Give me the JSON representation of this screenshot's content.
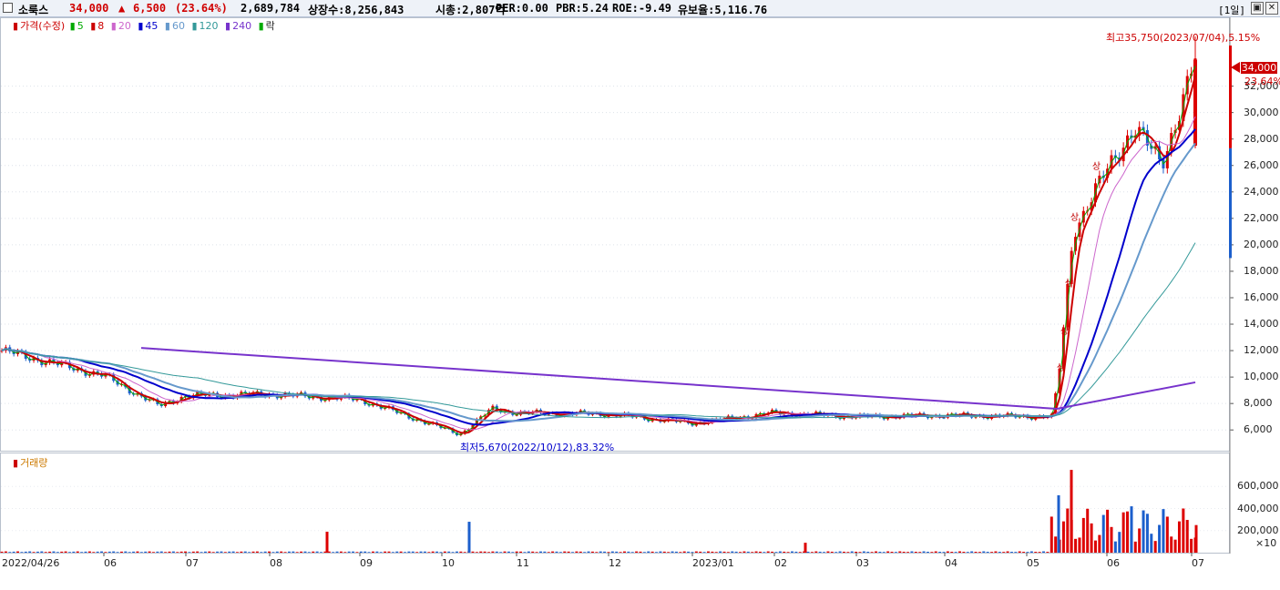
{
  "header": {
    "name": "소룩스",
    "price": "34,000",
    "change_arrow": "▲",
    "change": "6,500",
    "change_pct": "(23.64%)",
    "volume": "2,689,784",
    "listed": "상장수:8,256,843",
    "mcap": "시총:2,807억",
    "per": "PER:0.00",
    "pbr": "PBR:5.24",
    "roe": "ROE:-9.49",
    "retention": "유보율:5,116.76",
    "period": "[1일]",
    "restore_icon": "restore-icon",
    "close_icon": "close-icon"
  },
  "legend": {
    "price_label": "가격(수정)",
    "ma": [
      {
        "label": "5",
        "color": "#00aa00"
      },
      {
        "label": "8",
        "color": "#cc0000"
      },
      {
        "label": "20",
        "color": "#cc66cc"
      },
      {
        "label": "45",
        "color": "#0000cc"
      },
      {
        "label": "60",
        "color": "#6699cc"
      },
      {
        "label": "120",
        "color": "#339999"
      },
      {
        "label": "240",
        "color": "#7733cc"
      }
    ],
    "rak": "락"
  },
  "volume_legend": "거래량",
  "annotations": {
    "high": "최고35,750(2023/07/04),5.15%",
    "low": "최저5,670(2022/10/12),83.32%",
    "sang": "상"
  },
  "price_tag": {
    "value": "34,000",
    "pct": "23.64%"
  },
  "chart_data": {
    "type": "candlestick",
    "price_axis": {
      "ticks": [
        "32,000",
        "30,000",
        "28,000",
        "26,000",
        "24,000",
        "22,000",
        "20,000",
        "18,000",
        "16,000",
        "14,000",
        "12,000",
        "10,000",
        "8,000",
        "6,000"
      ],
      "ylim": [
        4500,
        37000
      ]
    },
    "volume_axis": {
      "ticks": [
        "600,000",
        "400,000",
        "200,000"
      ],
      "unit": "×10",
      "ylim": [
        0,
        800000
      ]
    },
    "x_labels": [
      "2022/04/26",
      "06",
      "07",
      "08",
      "09",
      "10",
      "11",
      "12",
      "2023/01",
      "02",
      "03",
      "04",
      "05",
      "06",
      "07"
    ],
    "key_points": [
      {
        "date": "2022/04/26",
        "close": 12000
      },
      {
        "date": "2022/06",
        "close": 10100
      },
      {
        "date": "2022/06 end",
        "close": 7800
      },
      {
        "date": "2022/07",
        "close": 8600
      },
      {
        "date": "2022/08",
        "close": 8700
      },
      {
        "date": "2022/09",
        "close": 8300
      },
      {
        "date": "2022/10/12",
        "close": 5670
      },
      {
        "date": "2022/10",
        "close": 7600
      },
      {
        "date": "2022/11",
        "close": 7300
      },
      {
        "date": "2022/12",
        "close": 7200
      },
      {
        "date": "2023/01",
        "close": 6500
      },
      {
        "date": "2023/02",
        "close": 7300
      },
      {
        "date": "2023/03",
        "close": 7000
      },
      {
        "date": "2023/04",
        "close": 7100
      },
      {
        "date": "2023/05",
        "close": 7000
      },
      {
        "date": "2023/05 mid",
        "close": 10000
      },
      {
        "date": "2023/05 late",
        "close": 21000
      },
      {
        "date": "2023/06",
        "close": 25000
      },
      {
        "date": "2023/06 mid",
        "close": 29000
      },
      {
        "date": "2023/06 late",
        "close": 26000
      },
      {
        "date": "2023/07/04",
        "close": 34000
      }
    ],
    "volume_spikes": [
      {
        "date": "2022/08",
        "value": 190000
      },
      {
        "date": "2022/10",
        "value": 280000
      },
      {
        "date": "2023/02",
        "value": 90000
      },
      {
        "date": "2023/05",
        "value": 520000
      },
      {
        "date": "2023/05 mid",
        "value": 750000
      },
      {
        "date": "2023/06",
        "value": 420000
      },
      {
        "date": "2023/07",
        "value": 250000
      }
    ]
  }
}
